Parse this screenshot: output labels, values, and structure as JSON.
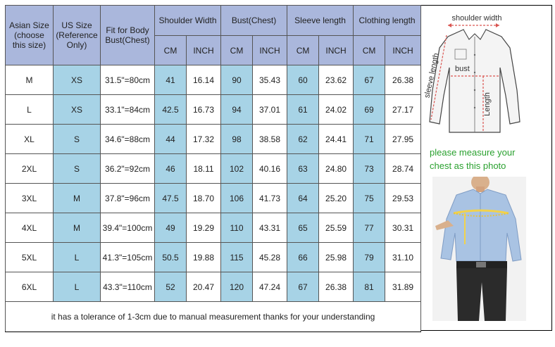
{
  "headers": {
    "asian_size": "Asian Size (choose this size)",
    "asian_size_l1": "Asian Size",
    "asian_size_l2": "(choose",
    "asian_size_l3": "this size)",
    "us_size_l1": "US Size",
    "us_size_l2": "(Reference",
    "us_size_l3": "Only)",
    "fit_l1": "Fit for Body",
    "fit_l2": "Bust(Chest)",
    "shoulder": "Shoulder Width",
    "bust": "Bust(Chest)",
    "sleeve": "Sleeve length",
    "clothing": "Clothing length",
    "cm": "CM",
    "inch": "INCH"
  },
  "rows": [
    {
      "asian": "M",
      "us": "XS",
      "fit": "31.5\"=80cm",
      "sh_cm": "41",
      "sh_in": "16.14",
      "bu_cm": "90",
      "bu_in": "35.43",
      "sl_cm": "60",
      "sl_in": "23.62",
      "cl_cm": "67",
      "cl_in": "26.38"
    },
    {
      "asian": "L",
      "us": "XS",
      "fit": "33.1\"=84cm",
      "sh_cm": "42.5",
      "sh_in": "16.73",
      "bu_cm": "94",
      "bu_in": "37.01",
      "sl_cm": "61",
      "sl_in": "24.02",
      "cl_cm": "69",
      "cl_in": "27.17"
    },
    {
      "asian": "XL",
      "us": "S",
      "fit": "34.6\"=88cm",
      "sh_cm": "44",
      "sh_in": "17.32",
      "bu_cm": "98",
      "bu_in": "38.58",
      "sl_cm": "62",
      "sl_in": "24.41",
      "cl_cm": "71",
      "cl_in": "27.95"
    },
    {
      "asian": "2XL",
      "us": "S",
      "fit": "36.2\"=92cm",
      "sh_cm": "46",
      "sh_in": "18.11",
      "bu_cm": "102",
      "bu_in": "40.16",
      "sl_cm": "63",
      "sl_in": "24.80",
      "cl_cm": "73",
      "cl_in": "28.74"
    },
    {
      "asian": "3XL",
      "us": "M",
      "fit": "37.8\"=96cm",
      "sh_cm": "47.5",
      "sh_in": "18.70",
      "bu_cm": "106",
      "bu_in": "41.73",
      "sl_cm": "64",
      "sl_in": "25.20",
      "cl_cm": "75",
      "cl_in": "29.53"
    },
    {
      "asian": "4XL",
      "us": "M",
      "fit": "39.4\"=100cm",
      "sh_cm": "49",
      "sh_in": "19.29",
      "bu_cm": "110",
      "bu_in": "43.31",
      "sl_cm": "65",
      "sl_in": "25.59",
      "cl_cm": "77",
      "cl_in": "30.31"
    },
    {
      "asian": "5XL",
      "us": "L",
      "fit": "41.3\"=105cm",
      "sh_cm": "50.5",
      "sh_in": "19.88",
      "bu_cm": "115",
      "bu_in": "45.28",
      "sl_cm": "66",
      "sl_in": "25.98",
      "cl_cm": "79",
      "cl_in": "31.10"
    },
    {
      "asian": "6XL",
      "us": "L",
      "fit": "43.3\"=110cm",
      "sh_cm": "52",
      "sh_in": "20.47",
      "bu_cm": "120",
      "bu_in": "47.24",
      "sl_cm": "67",
      "sl_in": "26.38",
      "cl_cm": "81",
      "cl_in": "31.89"
    }
  ],
  "note": "it has a tolerance of 1-3cm due to manual measurement thanks for your understanding",
  "diagram": {
    "shoulder_label": "shoulder width",
    "sleeve_label": "sleeve length",
    "bust_label": "bust",
    "length_label": "Length"
  },
  "measure_note_l1": "please measure your",
  "measure_note_l2": "chest as this photo",
  "colors": {
    "header_bg": "#aab7dc",
    "blue_col": "#a7d3e6",
    "measure_line": "#d9534f",
    "note_green": "#2aa12f"
  }
}
